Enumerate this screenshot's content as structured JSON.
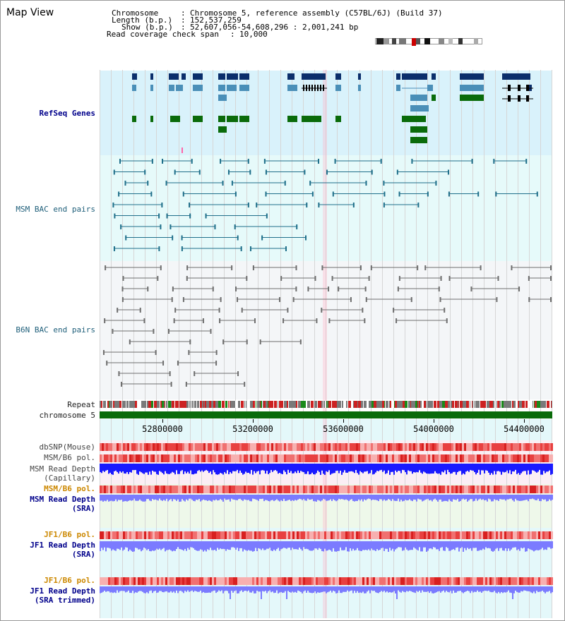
{
  "page_title": "Map View",
  "header": {
    "chromosome_label": "Chromosome",
    "chromosome_value": "Chromosome 5, reference assembly (C57BL/6J) (Build 37)",
    "length_label": "Length (b.p.)",
    "length_value": "152,537,259",
    "show_label": "Show (b.p.)",
    "show_value": "52,607,056-54,608,296 : 2,001,241 bp",
    "coverage_label": "Read coverage check span",
    "coverage_value": "10,000"
  },
  "tracks": {
    "refseq": "RefSeq Genes",
    "msm_bac": "MSM BAC end pairs",
    "b6n_bac": "B6N BAC end pairs",
    "repeat": "Repeat",
    "chromosome": "chromosome 5",
    "dbsnp": "dbSNP(Mouse)",
    "msm_b6_pol_1": "MSM/B6 pol.",
    "msm_read_depth_cap_1": "MSM Read Depth",
    "msm_read_depth_cap_2": "(Capillary)",
    "msm_b6_pol_2": "MSM/B6 pol.",
    "msm_read_depth_sra_1": "MSM Read Depth",
    "msm_read_depth_sra_2": "(SRA)",
    "jf1_b6_pol_1": "JF1/B6 pol.",
    "jf1_read_depth_1": "JF1 Read Depth",
    "jf1_read_depth_2": "(SRA)",
    "jf1_b6_pol_2": "JF1/B6 pol.",
    "jf1_read_depth_trim_1": "JF1 Read Depth",
    "jf1_read_depth_trim_2": "(SRA trimmed)"
  },
  "axis_ticks": [
    "52800000",
    "53200000",
    "53600000",
    "54000000",
    "54400000"
  ],
  "colors": {
    "refseq_bg": "#d9f2fb",
    "bac_bg": "#e6fafa",
    "gene_dark": "#0b2e6b",
    "gene_mid": "#4a8fb8",
    "gene_green": "#0a6b0a",
    "bac_teal": "#1f6f8a",
    "bac_grey": "#6e6e6e",
    "chromosome_bar": "#0a6b0a",
    "pol_red": "#e84a4a",
    "depth_blue": "#1a1aff",
    "depth_light": "#7b7bff"
  }
}
